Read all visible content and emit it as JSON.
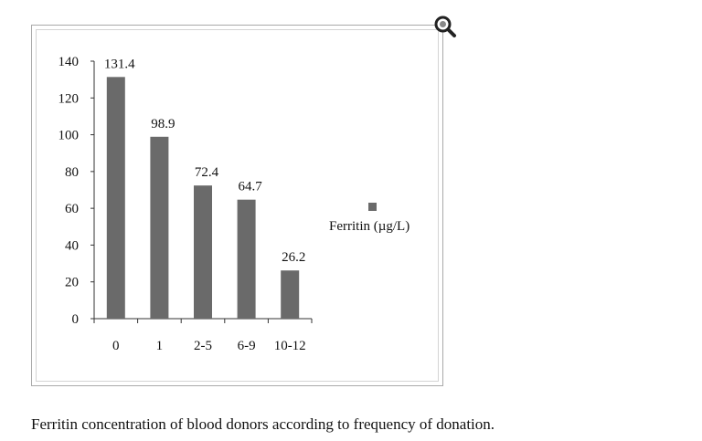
{
  "chart_data": {
    "type": "bar",
    "categories": [
      "0",
      "1",
      "2-5",
      "6-9",
      "10-12"
    ],
    "series": [
      {
        "name": "Ferritin (µg/L)",
        "values": [
          131.4,
          98.9,
          72.4,
          64.7,
          26.2
        ]
      }
    ],
    "data_labels": [
      "131.4",
      "98.9",
      "72.4",
      "64.7",
      "26.2"
    ],
    "ylim": [
      0,
      140
    ],
    "yticks": [
      0,
      20,
      40,
      60,
      80,
      100,
      120,
      140
    ],
    "xlabel": "",
    "ylabel": "",
    "grid": false,
    "legend_position": "right",
    "bar_color": "#6a6a6a"
  },
  "caption": "Ferritin concentration of blood donors according to frequency of donation.",
  "icons": {
    "zoom": "magnifier-icon"
  }
}
